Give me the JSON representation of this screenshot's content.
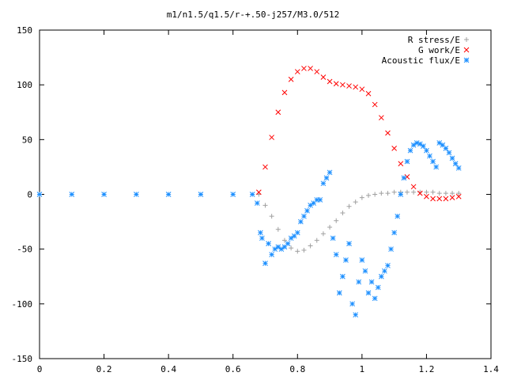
{
  "chart_data": {
    "type": "scatter",
    "title": "m1/n1.5/q1.5/r-+.50-j257/M3.0/512",
    "xlabel": "",
    "ylabel": "",
    "xlim": [
      0,
      1.4
    ],
    "ylim": [
      -150,
      150
    ],
    "x_ticks": [
      {
        "value": 0,
        "label": "0"
      },
      {
        "value": 0.2,
        "label": "0.2"
      },
      {
        "value": 0.4,
        "label": "0.4"
      },
      {
        "value": 0.6,
        "label": "0.6"
      },
      {
        "value": 0.8,
        "label": "0.8"
      },
      {
        "value": 1.0,
        "label": "1"
      },
      {
        "value": 1.2,
        "label": "1.2"
      },
      {
        "value": 1.4,
        "label": "1.4"
      }
    ],
    "y_ticks": [
      {
        "value": -150,
        "label": "-150"
      },
      {
        "value": -100,
        "label": "-100"
      },
      {
        "value": -50,
        "label": "-50"
      },
      {
        "value": 0,
        "label": "0"
      },
      {
        "value": 50,
        "label": "50"
      },
      {
        "value": 100,
        "label": "100"
      },
      {
        "value": 150,
        "label": "150"
      }
    ],
    "grid": false,
    "legend_position": "top-right",
    "series": [
      {
        "name": "R stress/E",
        "marker": "plus",
        "color": "#a0a0a0",
        "x": [
          0.68,
          0.7,
          0.72,
          0.74,
          0.76,
          0.78,
          0.8,
          0.82,
          0.84,
          0.86,
          0.88,
          0.9,
          0.92,
          0.94,
          0.96,
          0.98,
          1.0,
          1.02,
          1.04,
          1.06,
          1.08,
          1.1,
          1.12,
          1.14,
          1.16,
          1.18,
          1.2,
          1.22,
          1.24,
          1.26,
          1.28,
          1.3
        ],
        "y": [
          0,
          -10,
          -20,
          -32,
          -42,
          -49,
          -52,
          -51,
          -47,
          -42,
          -36,
          -30,
          -24,
          -17,
          -11,
          -7,
          -3,
          -1,
          0,
          1,
          1,
          2,
          2,
          2,
          2,
          2,
          2,
          2,
          1,
          1,
          1,
          1
        ]
      },
      {
        "name": "G work/E",
        "marker": "cross",
        "color": "#ff0000",
        "x": [
          0.68,
          0.7,
          0.72,
          0.74,
          0.76,
          0.78,
          0.8,
          0.82,
          0.84,
          0.86,
          0.88,
          0.9,
          0.92,
          0.94,
          0.96,
          0.98,
          1.0,
          1.02,
          1.04,
          1.06,
          1.08,
          1.1,
          1.12,
          1.14,
          1.16,
          1.18,
          1.2,
          1.22,
          1.24,
          1.26,
          1.28,
          1.3
        ],
        "y": [
          2,
          25,
          52,
          75,
          93,
          105,
          112,
          115,
          115,
          112,
          107,
          103,
          101,
          100,
          99,
          98,
          96,
          92,
          82,
          70,
          56,
          42,
          28,
          16,
          7,
          1,
          -2,
          -4,
          -4,
          -4,
          -3,
          -2
        ]
      },
      {
        "name": "Acoustic flux/E",
        "marker": "star",
        "color": "#1e90ff",
        "x": [
          0.0,
          0.1,
          0.2,
          0.3,
          0.4,
          0.5,
          0.6,
          0.66,
          0.675,
          0.685,
          0.69,
          0.7,
          0.71,
          0.72,
          0.73,
          0.74,
          0.75,
          0.76,
          0.77,
          0.78,
          0.79,
          0.8,
          0.81,
          0.82,
          0.83,
          0.84,
          0.85,
          0.86,
          0.87,
          0.88,
          0.89,
          0.9,
          0.91,
          0.92,
          0.93,
          0.94,
          0.95,
          0.96,
          0.97,
          0.98,
          0.99,
          1.0,
          1.01,
          1.02,
          1.03,
          1.04,
          1.05,
          1.06,
          1.07,
          1.08,
          1.09,
          1.1,
          1.11,
          1.12,
          1.13,
          1.14,
          1.15,
          1.16,
          1.17,
          1.18,
          1.19,
          1.2,
          1.21,
          1.22,
          1.23,
          1.24,
          1.25,
          1.26,
          1.27,
          1.28,
          1.29,
          1.3
        ],
        "y": [
          0,
          0,
          0,
          0,
          0,
          0,
          0,
          0,
          -8,
          -35,
          -40,
          -63,
          -45,
          -55,
          -50,
          -48,
          -50,
          -48,
          -45,
          -40,
          -38,
          -35,
          -25,
          -20,
          -15,
          -10,
          -8,
          -5,
          -5,
          10,
          15,
          20,
          -40,
          -55,
          -90,
          -75,
          -60,
          -45,
          -100,
          -110,
          -80,
          -60,
          -70,
          -90,
          -80,
          -95,
          -85,
          -75,
          -70,
          -65,
          -50,
          -35,
          -20,
          0,
          15,
          30,
          40,
          45,
          47,
          46,
          44,
          40,
          35,
          30,
          25,
          47,
          45,
          42,
          38,
          33,
          28,
          24
        ]
      }
    ]
  }
}
